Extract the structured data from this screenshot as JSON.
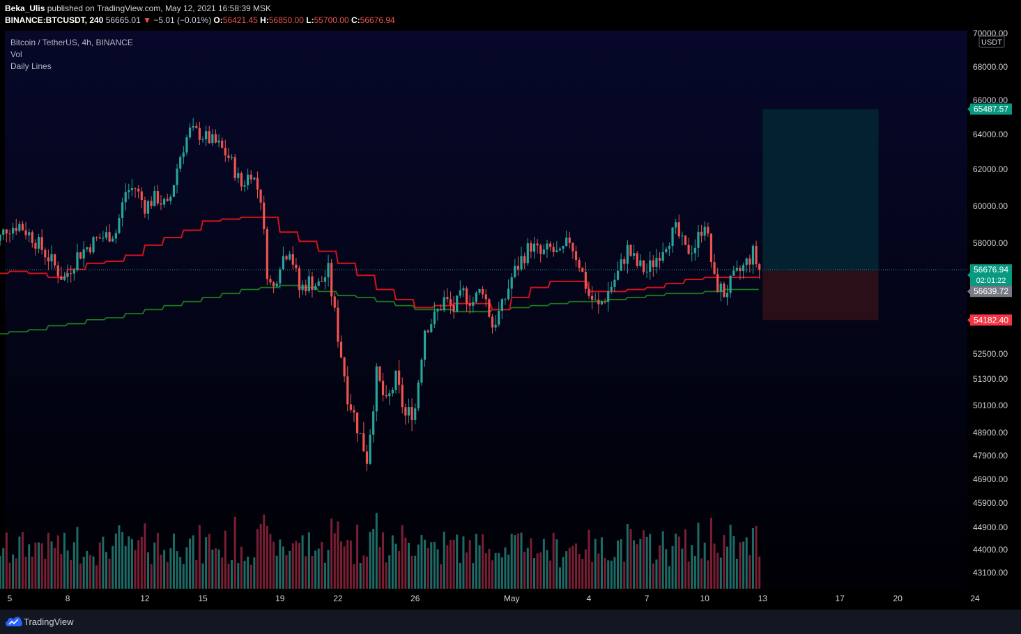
{
  "header": {
    "author": "Beka_Ulis",
    "published_text": "published on TradingView.com, May 12, 2021 16:58:39 MSK",
    "symbol": "BINANCE:BTCUSDT, 240",
    "last": "56665.01",
    "change_arrow": "▼",
    "change": "−5.01 (−0.01%)",
    "o_label": "O:",
    "o": "56421.45",
    "h_label": "H:",
    "h": "56850.00",
    "l_label": "L:",
    "l": "55700.00",
    "c_label": "C:",
    "c": "56676.94"
  },
  "legend": {
    "title": "Bitcoin / TetherUS, 4h, BINANCE",
    "vol": "Vol",
    "indicator": "Daily Lines"
  },
  "footer": {
    "brand": "TradingView"
  },
  "colors": {
    "up": "#26a69a",
    "down": "#ef5350",
    "vol_up": "#1e6b66",
    "vol_down": "#7a1f33",
    "red_line": "#d2121b",
    "green_line": "#1b7a1b",
    "target_zone": "#03212e",
    "stop_zone": "#2a0f19"
  },
  "chart_data": {
    "type": "candlestick",
    "title": "Bitcoin / TetherUS, 4h, BINANCE",
    "currency": "USDT",
    "price_ticks": [
      "70000.00",
      "68000.00",
      "66000.00",
      "64000.00",
      "62000.00",
      "60000.00",
      "58000.00",
      "52500.00",
      "51300.00",
      "50100.00",
      "48900.00",
      "47900.00",
      "46900.00",
      "45900.00",
      "44900.00",
      "44000.00",
      "43100.00"
    ],
    "time_ticks": [
      {
        "label": "5",
        "day": 5
      },
      {
        "label": "8",
        "day": 8
      },
      {
        "label": "12",
        "day": 12
      },
      {
        "label": "15",
        "day": 15
      },
      {
        "label": "19",
        "day": 19
      },
      {
        "label": "22",
        "day": 22
      },
      {
        "label": "26",
        "day": 26
      },
      {
        "label": "May",
        "day": 31
      },
      {
        "label": "4",
        "day": 35
      },
      {
        "label": "7",
        "day": 38
      },
      {
        "label": "10",
        "day": 41
      },
      {
        "label": "13",
        "day": 44
      },
      {
        "label": "17",
        "day": 48
      },
      {
        "label": "20",
        "day": 51
      },
      {
        "label": "24",
        "day": 55
      }
    ],
    "price_labels": {
      "target": "65487.57",
      "current": "56676.94",
      "countdown": "02:01:22",
      "entry": "56639.72",
      "stop": "54182.40"
    },
    "position": {
      "entry": 56639.72,
      "target": 65487.57,
      "stop": 54182.4,
      "start_day": 44,
      "end_day": 50
    },
    "red_line_steps": [
      [
        4.0,
        56500
      ],
      [
        5,
        56600
      ],
      [
        6,
        56500
      ],
      [
        7,
        56300
      ],
      [
        8,
        56700
      ],
      [
        9,
        57000
      ],
      [
        10,
        57100
      ],
      [
        11,
        57400
      ],
      [
        12,
        57900
      ],
      [
        13,
        58300
      ],
      [
        14,
        58700
      ],
      [
        15,
        59200
      ],
      [
        16,
        59300
      ],
      [
        17,
        59400
      ],
      [
        18,
        59400
      ],
      [
        19,
        58600
      ],
      [
        20,
        58100
      ],
      [
        21,
        57600
      ],
      [
        22,
        57000
      ],
      [
        23,
        56400
      ],
      [
        24,
        55700
      ],
      [
        25,
        55200
      ],
      [
        26,
        54800
      ],
      [
        27,
        54900
      ],
      [
        28,
        55000
      ],
      [
        29,
        55000
      ],
      [
        30,
        54700
      ],
      [
        31,
        55300
      ],
      [
        32,
        55800
      ],
      [
        33,
        56100
      ],
      [
        34,
        56100
      ],
      [
        35,
        55600
      ],
      [
        36,
        55600
      ],
      [
        37,
        55700
      ],
      [
        38,
        55800
      ],
      [
        39,
        56000
      ],
      [
        40,
        56200
      ],
      [
        41,
        56300
      ],
      [
        42,
        56300
      ],
      [
        43,
        56300
      ],
      [
        43.8,
        56300
      ]
    ],
    "green_line_steps": [
      [
        4.0,
        53500
      ],
      [
        5,
        53600
      ],
      [
        6,
        53700
      ],
      [
        7,
        53900
      ],
      [
        8,
        54000
      ],
      [
        9,
        54200
      ],
      [
        10,
        54300
      ],
      [
        11,
        54500
      ],
      [
        12,
        54700
      ],
      [
        13,
        54900
      ],
      [
        14,
        55100
      ],
      [
        15,
        55300
      ],
      [
        16,
        55500
      ],
      [
        17,
        55700
      ],
      [
        18,
        55800
      ],
      [
        19,
        55900
      ],
      [
        20,
        55800
      ],
      [
        21,
        55600
      ],
      [
        22,
        55400
      ],
      [
        23,
        55300
      ],
      [
        24,
        55100
      ],
      [
        25,
        54900
      ],
      [
        26,
        54700
      ],
      [
        27,
        54700
      ],
      [
        28,
        54600
      ],
      [
        29,
        54600
      ],
      [
        30,
        54700
      ],
      [
        31,
        54800
      ],
      [
        32,
        54900
      ],
      [
        33,
        55000
      ],
      [
        34,
        55100
      ],
      [
        35,
        55100
      ],
      [
        36,
        55200
      ],
      [
        37,
        55300
      ],
      [
        38,
        55400
      ],
      [
        39,
        55500
      ],
      [
        40,
        55500
      ],
      [
        41,
        55600
      ],
      [
        42,
        55700
      ],
      [
        43,
        55700
      ],
      [
        43.8,
        55700
      ]
    ],
    "price_anchors": [
      [
        4.0,
        57500
      ],
      [
        4.8,
        58800
      ],
      [
        5.5,
        59000
      ],
      [
        6.2,
        58300
      ],
      [
        7.0,
        57300
      ],
      [
        7.8,
        56200
      ],
      [
        8.5,
        57400
      ],
      [
        9.5,
        58200
      ],
      [
        10.5,
        58600
      ],
      [
        11.0,
        60800
      ],
      [
        11.5,
        61000
      ],
      [
        12.0,
        60000
      ],
      [
        12.6,
        60500
      ],
      [
        13.2,
        59900
      ],
      [
        13.8,
        62700
      ],
      [
        14.3,
        64200
      ],
      [
        14.7,
        64100
      ],
      [
        15.2,
        63800
      ],
      [
        15.8,
        63400
      ],
      [
        16.4,
        62600
      ],
      [
        17.0,
        61100
      ],
      [
        17.5,
        61900
      ],
      [
        18.0,
        60500
      ],
      [
        18.3,
        56800
      ],
      [
        18.6,
        55500
      ],
      [
        19.0,
        57100
      ],
      [
        19.5,
        57800
      ],
      [
        20.0,
        55700
      ],
      [
        20.5,
        56100
      ],
      [
        21.0,
        55900
      ],
      [
        21.5,
        56600
      ],
      [
        22.0,
        53400
      ],
      [
        22.5,
        50600
      ],
      [
        23.0,
        49200
      ],
      [
        23.5,
        47800
      ],
      [
        24.0,
        51500
      ],
      [
        24.5,
        50100
      ],
      [
        25.0,
        51300
      ],
      [
        25.5,
        49600
      ],
      [
        26.0,
        50000
      ],
      [
        26.5,
        53800
      ],
      [
        27.0,
        54300
      ],
      [
        27.5,
        55200
      ],
      [
        28.0,
        54700
      ],
      [
        28.5,
        55500
      ],
      [
        29.0,
        55100
      ],
      [
        29.5,
        55800
      ],
      [
        30.0,
        53900
      ],
      [
        30.5,
        54800
      ],
      [
        31.0,
        56300
      ],
      [
        31.5,
        57200
      ],
      [
        32.0,
        57900
      ],
      [
        32.5,
        57400
      ],
      [
        33.0,
        57700
      ],
      [
        33.5,
        57300
      ],
      [
        34.0,
        58200
      ],
      [
        34.5,
        57000
      ],
      [
        35.0,
        55400
      ],
      [
        35.5,
        54800
      ],
      [
        36.0,
        55600
      ],
      [
        36.5,
        56500
      ],
      [
        37.0,
        57700
      ],
      [
        37.5,
        56900
      ],
      [
        38.0,
        56600
      ],
      [
        38.5,
        57300
      ],
      [
        39.0,
        58100
      ],
      [
        39.5,
        58700
      ],
      [
        40.0,
        57600
      ],
      [
        40.5,
        57900
      ],
      [
        41.0,
        59200
      ],
      [
        41.5,
        56100
      ],
      [
        42.0,
        55500
      ],
      [
        42.5,
        56200
      ],
      [
        43.0,
        56800
      ],
      [
        43.5,
        57500
      ],
      [
        43.8,
        56677
      ]
    ],
    "volume_axis_max": 100
  }
}
